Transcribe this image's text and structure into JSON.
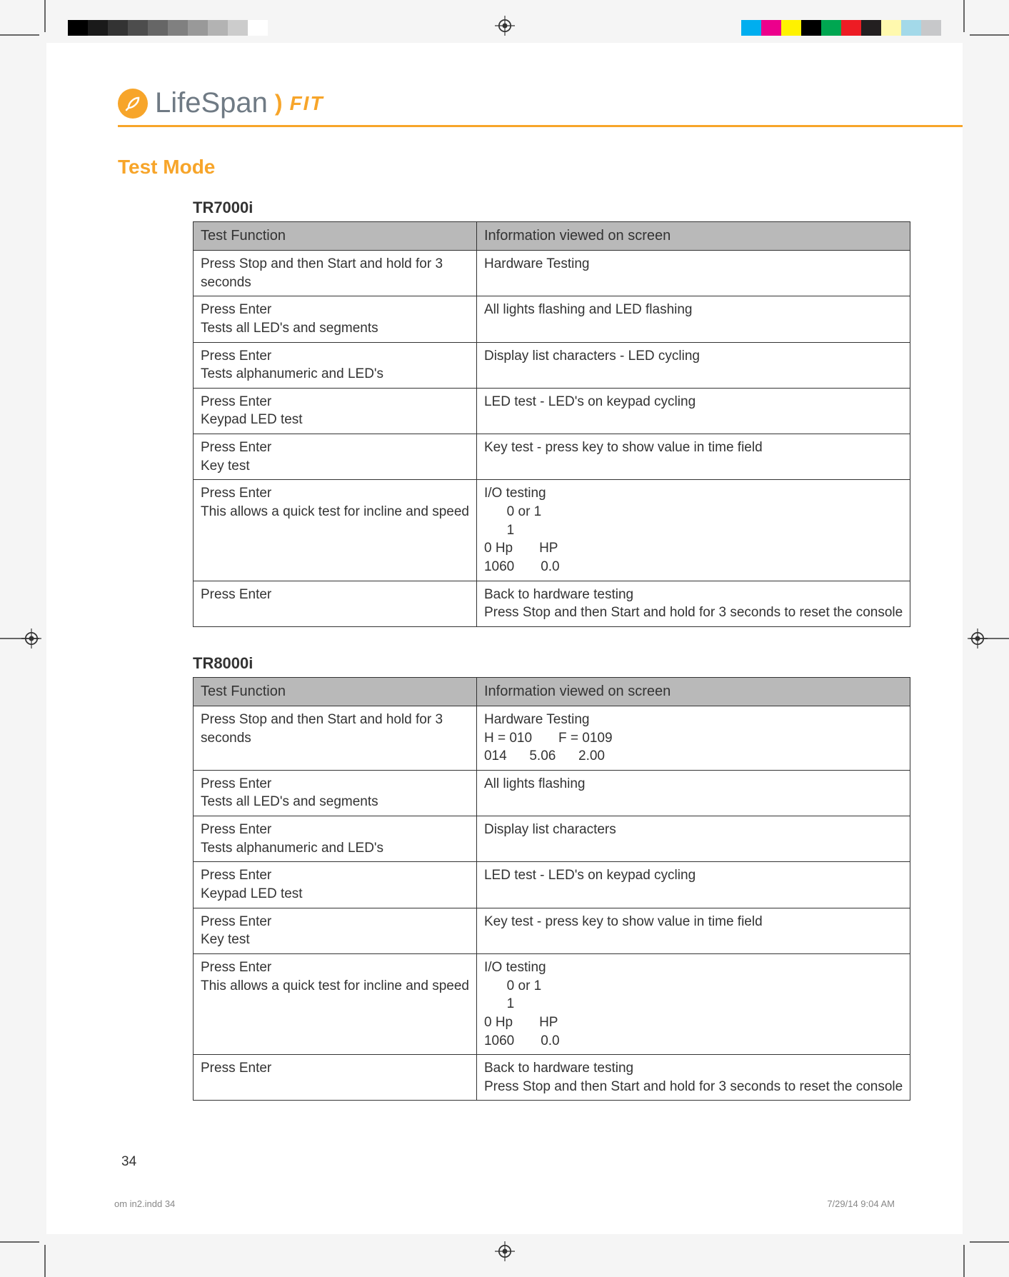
{
  "print": {
    "grayscale_swatches": [
      "#000000",
      "#1a1a1a",
      "#333333",
      "#4d4d4d",
      "#666666",
      "#808080",
      "#999999",
      "#b3b3b3",
      "#cccccc",
      "#ffffff"
    ],
    "color_swatches": [
      "#00aeef",
      "#ec008c",
      "#fff200",
      "#000000",
      "#00a651",
      "#ed1c24",
      "#231f20",
      "#fff9ae",
      "#a3d9e9",
      "#c7c8ca"
    ],
    "footer_left": "om in2.indd   34",
    "footer_right": "7/29/14   9:04 AM"
  },
  "brand": {
    "name": "LifeSpan",
    "suffix": "FIT",
    "accent": "#f7a52a",
    "gray": "#6f7a84"
  },
  "title": "Test Mode",
  "page_number": "34",
  "table_columns": [
    "Test Function",
    "Information viewed on screen"
  ],
  "sections": [
    {
      "name": "TR7000i",
      "rows": [
        [
          "Press Stop and then Start and hold for 3 seconds",
          "Hardware Testing"
        ],
        [
          "Press Enter\nTests all LED's and segments",
          "All lights flashing and LED flashing"
        ],
        [
          "Press Enter\nTests alphanumeric and LED's",
          "Display list characters - LED cycling"
        ],
        [
          "Press Enter\nKeypad LED test",
          "LED test - LED's on keypad cycling"
        ],
        [
          "Press Enter\nKey test",
          "Key test - press key to show value in time field"
        ],
        [
          "Press Enter\nThis allows a quick test for incline and speed",
          "I/O testing\n      0 or 1\n      1\n0 Hp       HP\n1060       0.0"
        ],
        [
          "Press Enter",
          "Back to hardware testing\nPress Stop and then Start and hold for 3 seconds to reset the console"
        ]
      ]
    },
    {
      "name": "TR8000i",
      "rows": [
        [
          "Press Stop and then Start and hold for 3 seconds",
          "Hardware Testing\nH = 010       F = 0109\n014      5.06      2.00"
        ],
        [
          "Press Enter\nTests all LED's and segments",
          "All lights flashing"
        ],
        [
          "Press Enter\nTests alphanumeric and LED's",
          "Display list characters"
        ],
        [
          "Press Enter\nKeypad LED test",
          "LED test - LED's on keypad cycling"
        ],
        [
          "Press Enter\nKey test",
          "Key test - press key to show value in time field"
        ],
        [
          "Press Enter\nThis allows a quick test for incline and speed",
          "I/O testing\n      0 or 1\n      1\n0 Hp       HP\n1060       0.0"
        ],
        [
          "Press Enter",
          "Back to hardware testing\nPress Stop and then Start and hold for 3 seconds to reset the console"
        ]
      ]
    }
  ]
}
